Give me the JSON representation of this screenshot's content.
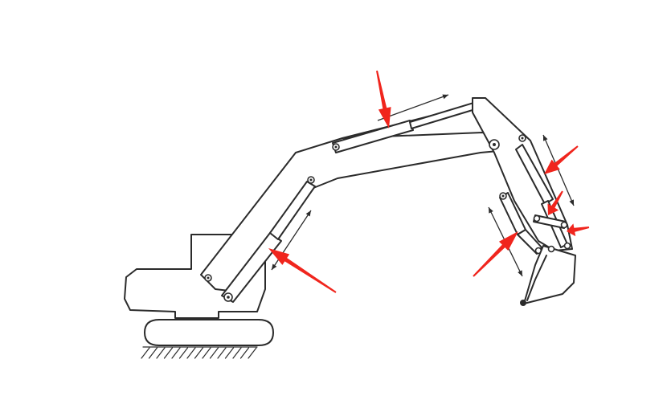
{
  "colors": {
    "line": "#2b2b2b",
    "accent": "#f0251d",
    "background": "#ffffff"
  },
  "diagram": {
    "subject": "excavator-hydraulic-cylinders",
    "red_arrow_count": 6,
    "motion_arrow_count": 4,
    "icons": [
      "excavator-body-icon",
      "track-icon",
      "ground-hatch-icon",
      "boom-icon",
      "arm-icon",
      "bucket-icon",
      "hydraulic-cylinder-icon",
      "pointer-arrow-icon",
      "motion-arrow-icon"
    ]
  }
}
